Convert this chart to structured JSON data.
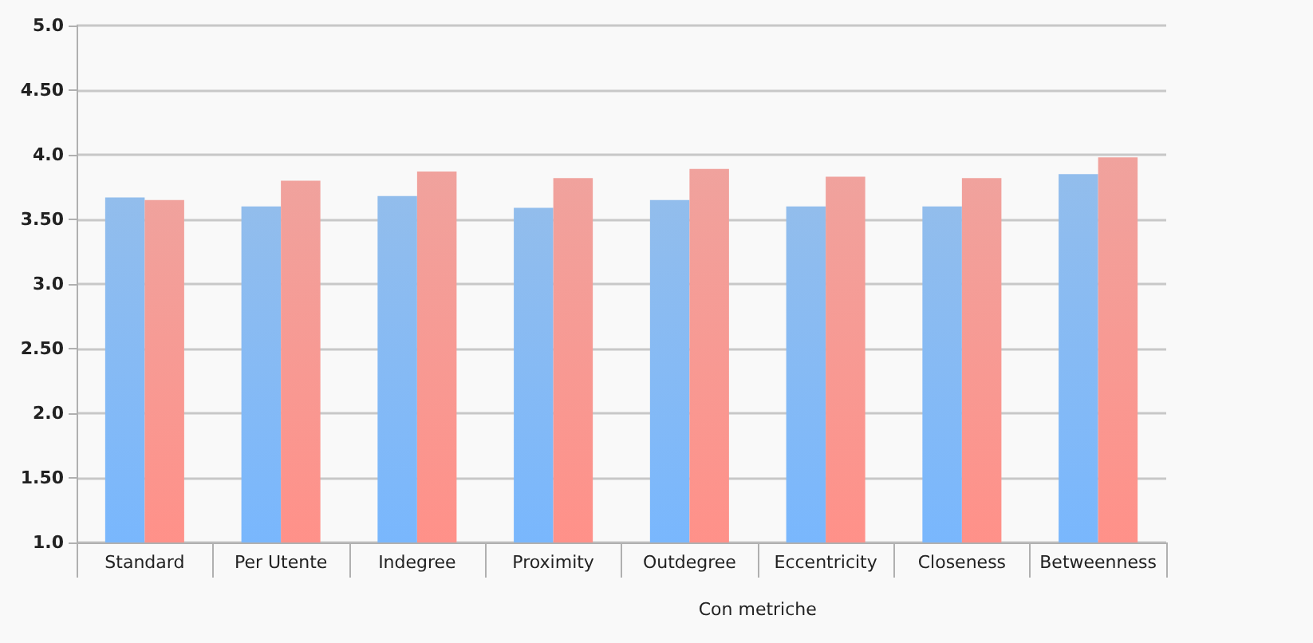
{
  "chart_data": {
    "type": "bar",
    "categories": [
      "Standard",
      "Per Utente",
      "Indegree",
      "Proximity",
      "Outdegree",
      "Eccentricity",
      "Closeness",
      "Betweenness"
    ],
    "series": [
      {
        "color": "#6ea7e6",
        "values": [
          3.67,
          3.6,
          3.68,
          3.59,
          3.65,
          3.6,
          3.6,
          3.85
        ]
      },
      {
        "color": "#ec847d",
        "values": [
          3.65,
          3.8,
          3.87,
          3.82,
          3.89,
          3.83,
          3.82,
          3.98
        ]
      }
    ],
    "ylim": [
      1.0,
      5.0
    ],
    "yticks": [
      {
        "value": 1.0,
        "label": "1.0"
      },
      {
        "value": 1.5,
        "label": "1.50"
      },
      {
        "value": 2.0,
        "label": "2.0"
      },
      {
        "value": 2.5,
        "label": "2.50"
      },
      {
        "value": 3.0,
        "label": "3.0"
      },
      {
        "value": 3.5,
        "label": "3.50"
      },
      {
        "value": 4.0,
        "label": "4.0"
      },
      {
        "value": 4.5,
        "label": "4.50"
      },
      {
        "value": 5.0,
        "label": "5.0"
      }
    ],
    "annotations": [
      "Con metriche"
    ],
    "grid": "y"
  }
}
